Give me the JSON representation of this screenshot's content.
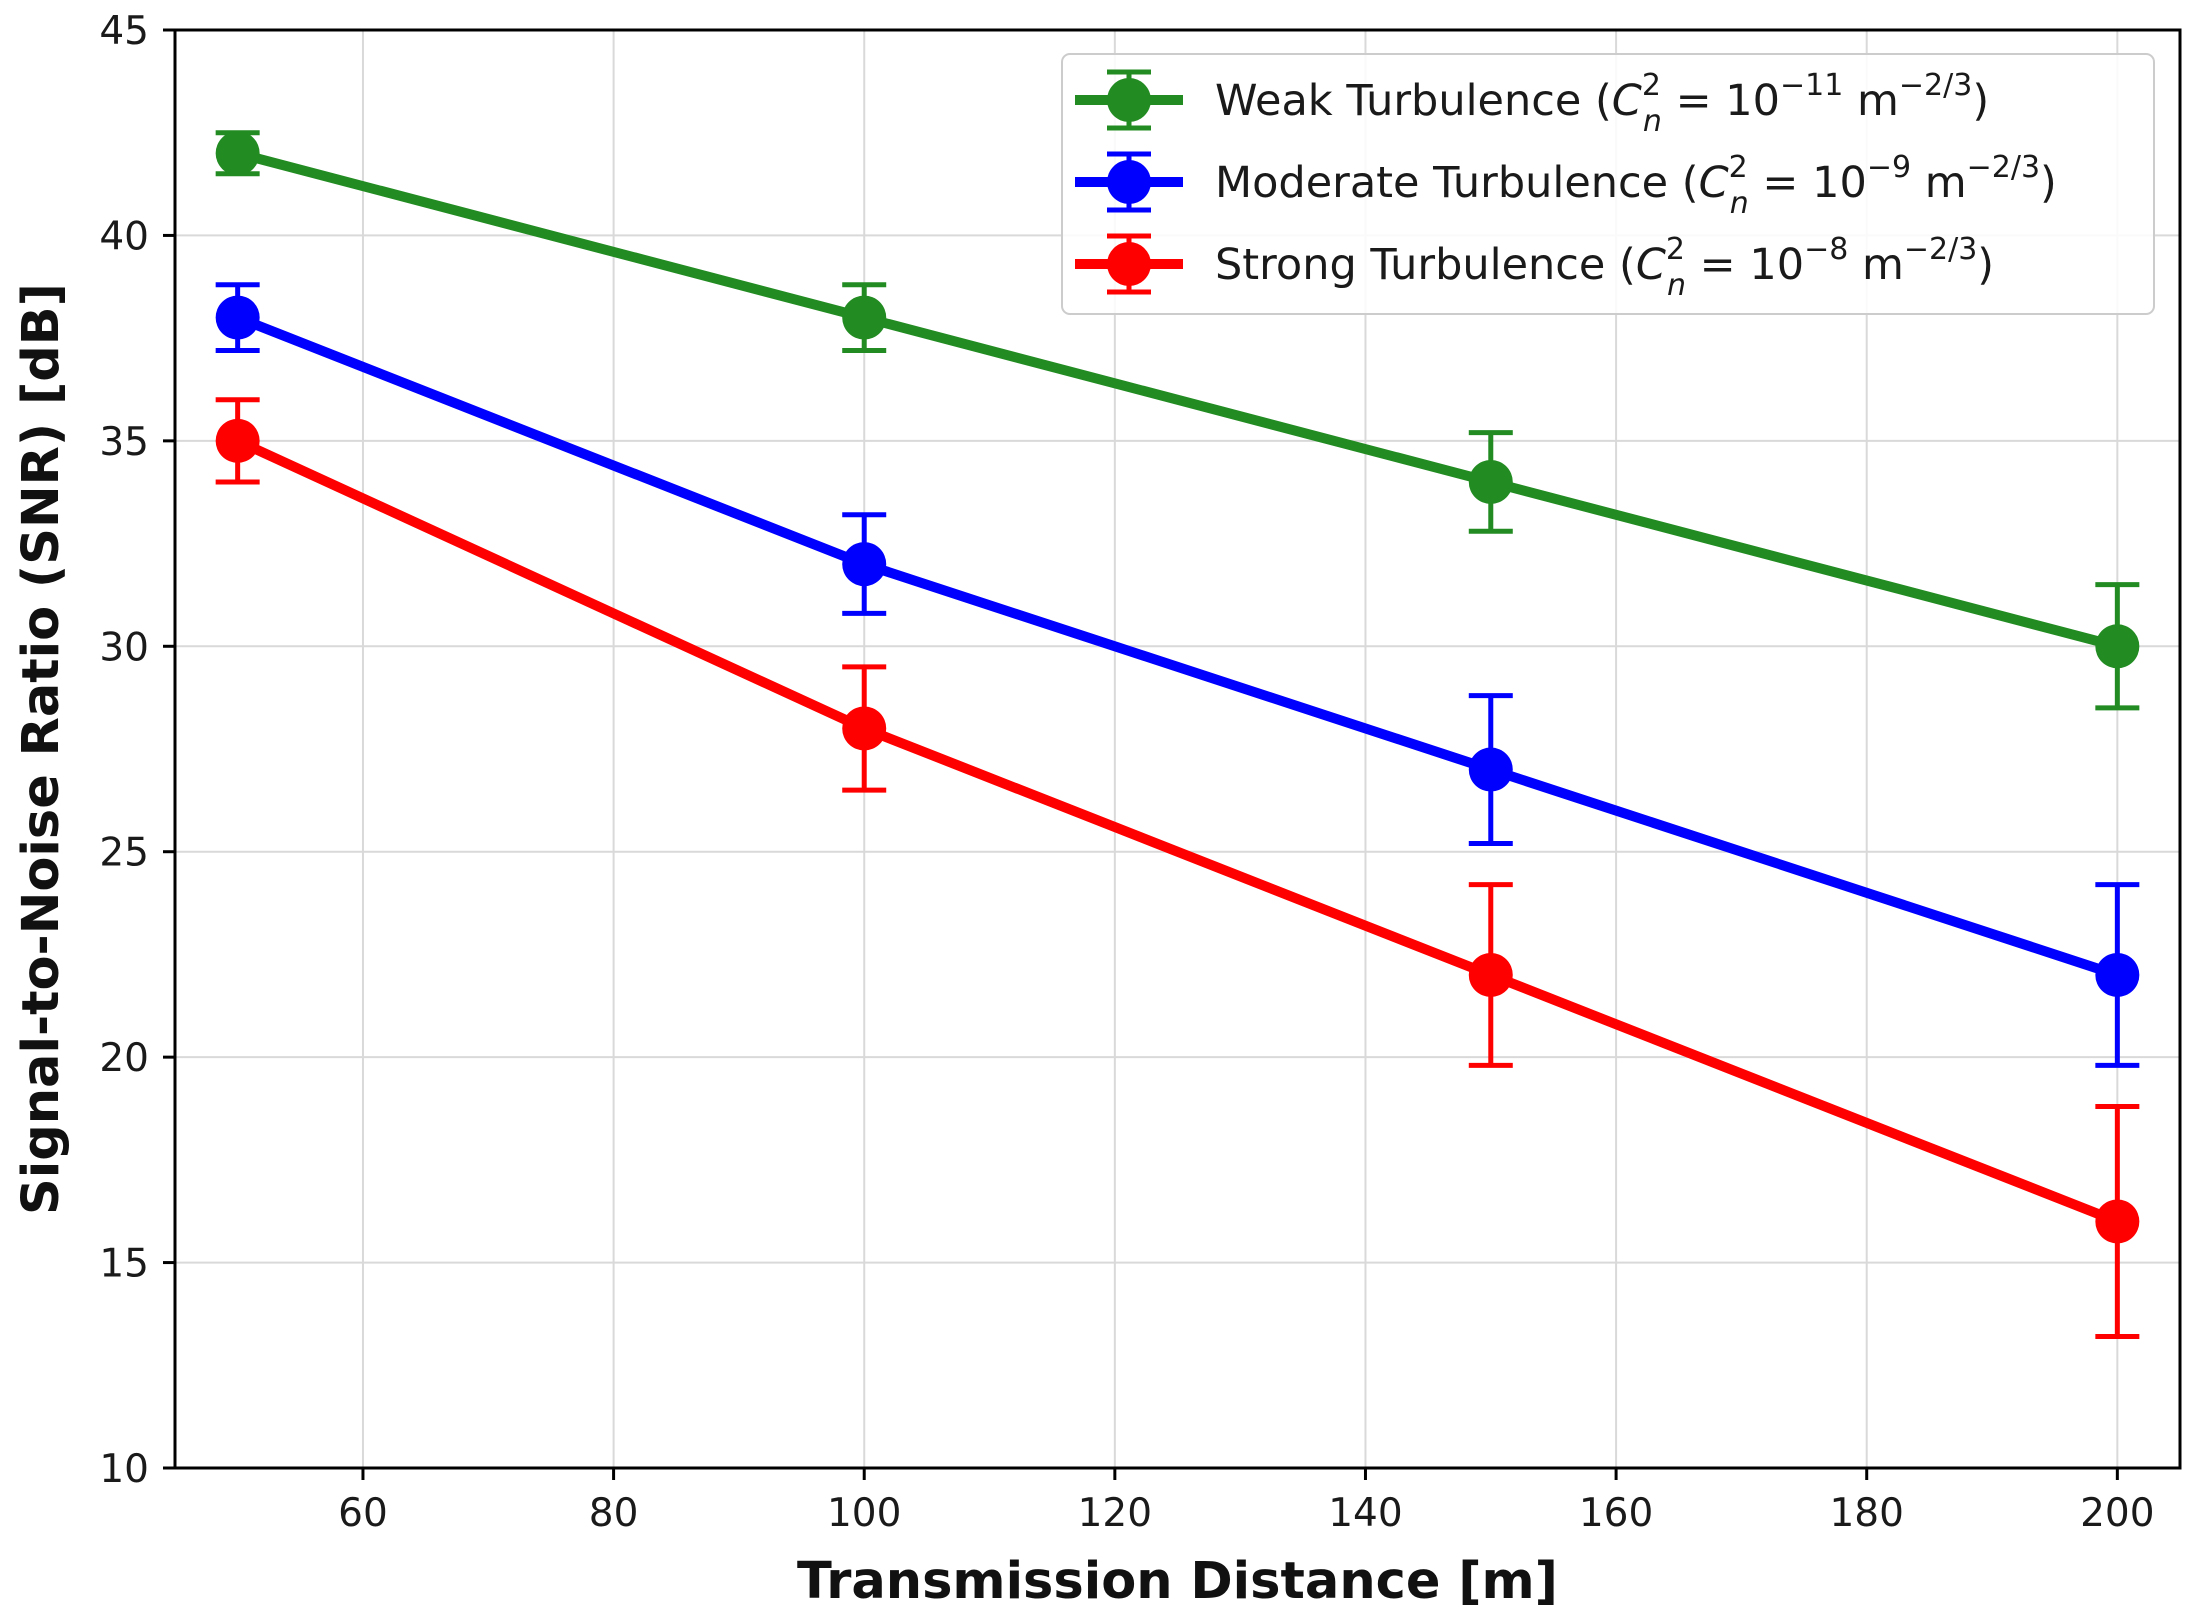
{
  "chart_data": {
    "type": "line",
    "xlabel": "Transmission Distance [m]",
    "ylabel": "Signal-to-Noise Ratio (SNR) [dB]",
    "xlim": [
      45,
      205
    ],
    "ylim": [
      10,
      45
    ],
    "xticks": [
      60,
      80,
      100,
      120,
      140,
      160,
      180,
      200
    ],
    "yticks": [
      10,
      15,
      20,
      25,
      30,
      35,
      40,
      45
    ],
    "grid": true,
    "legend_position": "top-right",
    "x": [
      50,
      100,
      150,
      200
    ],
    "series": [
      {
        "name": "Weak Turbulence",
        "legend_parts": {
          "prefix": "Weak Turbulence (",
          "c": "C",
          "sup": "2",
          "sub": "n",
          "eq": " = 10",
          "exp": "−11",
          "unit": " m",
          "unit_exp": "−2/3",
          "close": ")"
        },
        "color": "#228B22",
        "values": [
          42,
          38,
          34,
          30
        ],
        "errors": [
          0.5,
          0.8,
          1.2,
          1.5
        ]
      },
      {
        "name": "Moderate Turbulence",
        "legend_parts": {
          "prefix": "Moderate Turbulence (",
          "c": "C",
          "sup": "2",
          "sub": "n",
          "eq": " = 10",
          "exp": "−9",
          "unit": " m",
          "unit_exp": "−2/3",
          "close": ")"
        },
        "color": "#0000FF",
        "values": [
          38,
          32,
          27,
          22
        ],
        "errors": [
          0.8,
          1.2,
          1.8,
          2.2
        ]
      },
      {
        "name": "Strong Turbulence",
        "legend_parts": {
          "prefix": "Strong Turbulence (",
          "c": "C",
          "sup": "2",
          "sub": "n",
          "eq": " = 10",
          "exp": "−8",
          "unit": " m",
          "unit_exp": "−2/3",
          "close": ")"
        },
        "color": "#FF0000",
        "values": [
          35,
          28,
          22,
          16
        ],
        "errors": [
          1.0,
          1.5,
          2.2,
          2.8
        ]
      }
    ]
  }
}
